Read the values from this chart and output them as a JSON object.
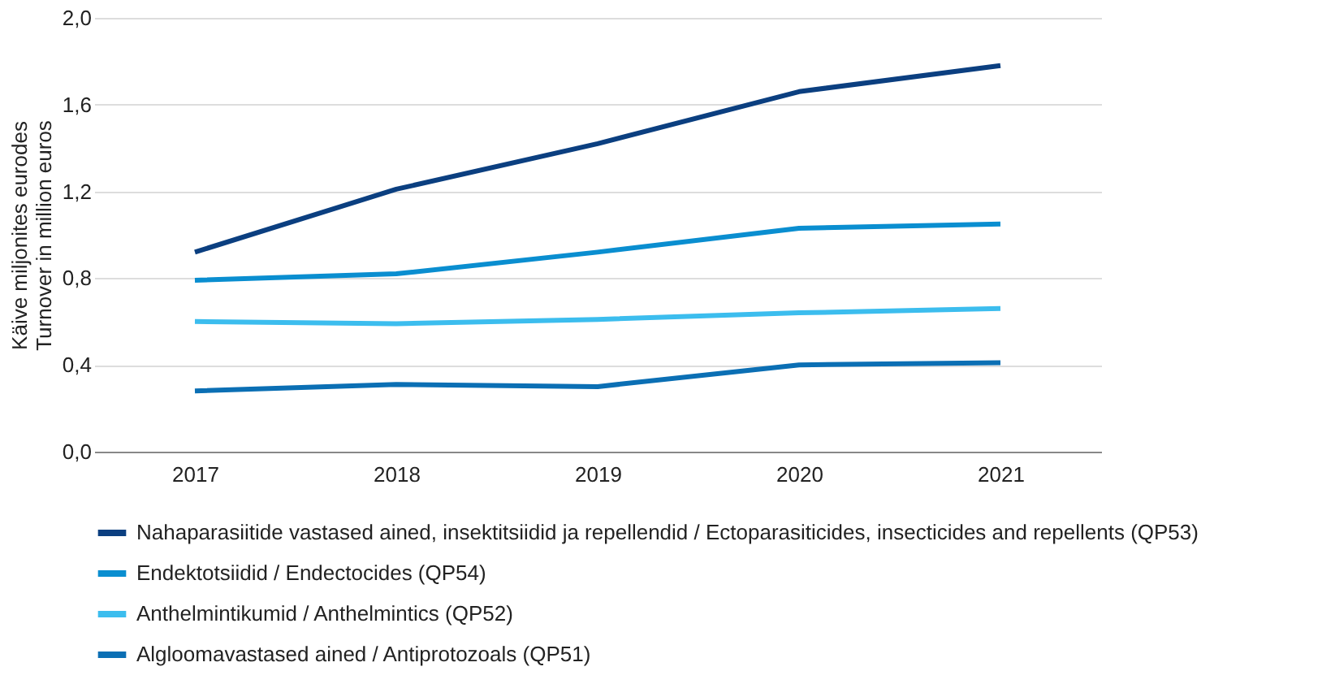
{
  "chart_data": {
    "type": "line",
    "ylabel": "Käive miljonites eurodes\nTurnover in million euros",
    "categories": [
      "2017",
      "2018",
      "2019",
      "2020",
      "2021"
    ],
    "series": [
      {
        "name": "Nahaparasiitide vastased ained, insektitsiidid ja repellendid / Ectoparasiticides, insecticides and repellents (QP53)",
        "color": "#0b3f80",
        "values": [
          0.92,
          1.21,
          1.42,
          1.66,
          1.78
        ]
      },
      {
        "name": "Endektotsiidid / Endectocides (QP54)",
        "color": "#0a8ed0",
        "values": [
          0.79,
          0.82,
          0.92,
          1.03,
          1.05
        ]
      },
      {
        "name": "Anthelmintikumid / Anthelmintics (QP52)",
        "color": "#3cbdee",
        "values": [
          0.6,
          0.59,
          0.61,
          0.64,
          0.66
        ]
      },
      {
        "name": "Algloomavastased ained / Antiprotozoals (QP51)",
        "color": "#0b6fb4",
        "values": [
          0.28,
          0.31,
          0.3,
          0.4,
          0.41
        ]
      }
    ],
    "ylim": [
      0,
      2
    ],
    "yticks": [
      {
        "value": 0,
        "label": "0,0"
      },
      {
        "value": 0.4,
        "label": "0,4"
      },
      {
        "value": 0.8,
        "label": "0,8"
      },
      {
        "value": 1.2,
        "label": "1,2"
      },
      {
        "value": 1.6,
        "label": "1,6"
      },
      {
        "value": 2,
        "label": "2,0"
      }
    ],
    "grid": "y",
    "legend": "bottom",
    "marker": "none",
    "line_style": "solid"
  }
}
